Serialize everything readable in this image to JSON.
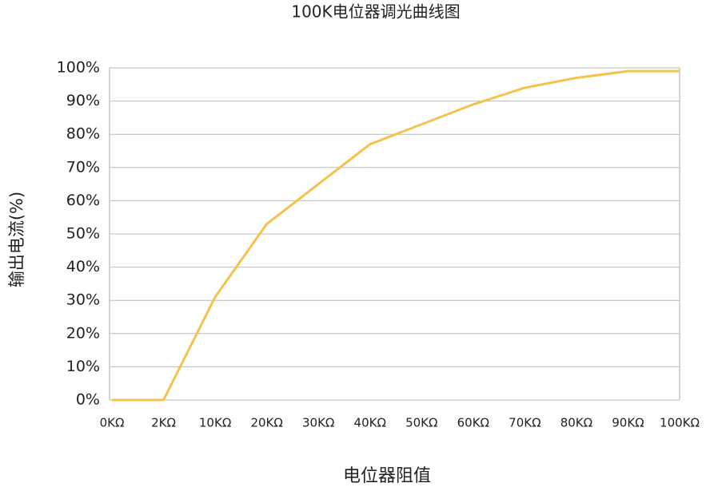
{
  "chart_data": {
    "type": "line",
    "title": "100K电位器调光曲线图",
    "x_label": "电位器阻值",
    "y_label": "输出电流(%)",
    "categories": [
      "0KΩ",
      "2KΩ",
      "10KΩ",
      "20KΩ",
      "30KΩ",
      "40KΩ",
      "50KΩ",
      "60KΩ",
      "70KΩ",
      "80KΩ",
      "90KΩ",
      "100KΩ"
    ],
    "series": [
      {
        "name": "输出电流",
        "color": "#f5c24c",
        "values": [
          0,
          0,
          31,
          53,
          65,
          77,
          83,
          89,
          94,
          97,
          99,
          99
        ]
      }
    ],
    "ylim": [
      0,
      100
    ],
    "yticks": [
      {
        "value": 0,
        "label": "0%"
      },
      {
        "value": 10,
        "label": "10%"
      },
      {
        "value": 20,
        "label": "20%"
      },
      {
        "value": 30,
        "label": "30%"
      },
      {
        "value": 40,
        "label": "40%"
      },
      {
        "value": 50,
        "label": "50%"
      },
      {
        "value": 60,
        "label": "60%"
      },
      {
        "value": 70,
        "label": "70%"
      },
      {
        "value": 80,
        "label": "80%"
      },
      {
        "value": 90,
        "label": "90%"
      },
      {
        "value": 100,
        "label": "100%"
      }
    ],
    "grid": true
  }
}
